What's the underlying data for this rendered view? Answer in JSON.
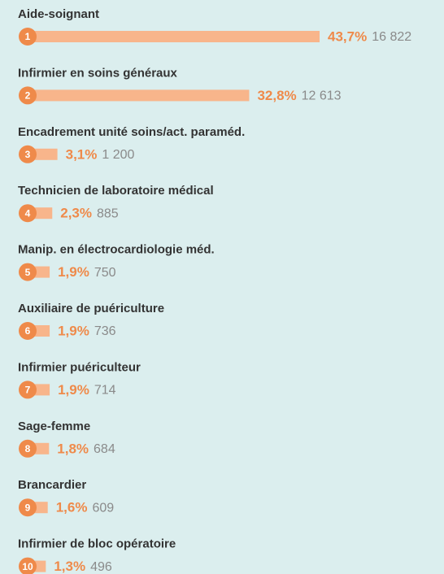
{
  "chart_data": {
    "type": "bar",
    "orientation": "horizontal",
    "categories": [
      "Aide-soignant",
      "Infirmier en soins généraux",
      "Encadrement unité soins/act. paraméd.",
      "Technicien de laboratoire médical",
      "Manip. en électrocardiologie méd.",
      "Auxiliaire de puériculture",
      "Infirmier puériculteur",
      "Sage-femme",
      "Brancardier",
      "Infirmier de bloc opératoire"
    ],
    "ranks": [
      1,
      2,
      3,
      4,
      5,
      6,
      7,
      8,
      9,
      10
    ],
    "values": [
      43.7,
      32.8,
      3.1,
      2.3,
      1.9,
      1.9,
      1.9,
      1.8,
      1.6,
      1.3
    ],
    "value_labels": [
      "43,7%",
      "32,8%",
      "3,1%",
      "2,3%",
      "1,9%",
      "1,9%",
      "1,9%",
      "1,8%",
      "1,6%",
      "1,3%"
    ],
    "counts": [
      16822,
      12613,
      1200,
      885,
      750,
      736,
      714,
      684,
      609,
      496
    ],
    "count_labels": [
      "16 822",
      "12 613",
      "1 200",
      "885",
      "750",
      "736",
      "714",
      "684",
      "609",
      "496"
    ],
    "color": "#f8b58b",
    "rank_color": "#ef8a4a"
  }
}
